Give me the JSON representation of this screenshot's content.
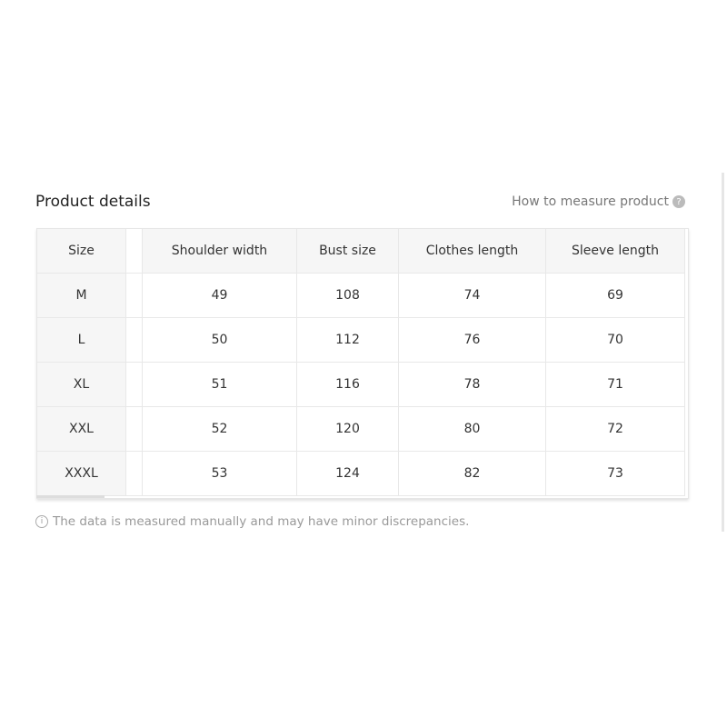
{
  "title": "Product details",
  "how_to_measure": "How to measure product",
  "headers": [
    "Size",
    "Shoulder width",
    "Bust size",
    "Clothes length",
    "Sleeve length"
  ],
  "rows": [
    [
      "M",
      "49",
      "108",
      "74",
      "69"
    ],
    [
      "L",
      "50",
      "112",
      "76",
      "70"
    ],
    [
      "XL",
      "51",
      "116",
      "78",
      "71"
    ],
    [
      "XXL",
      "52",
      "120",
      "80",
      "72"
    ],
    [
      "XXXL",
      "53",
      "124",
      "82",
      "73"
    ]
  ],
  "note": "The data is measured manually and may have minor discrepancies.",
  "icons": {
    "help": "question-circle-icon",
    "info": "info-circle-icon"
  }
}
